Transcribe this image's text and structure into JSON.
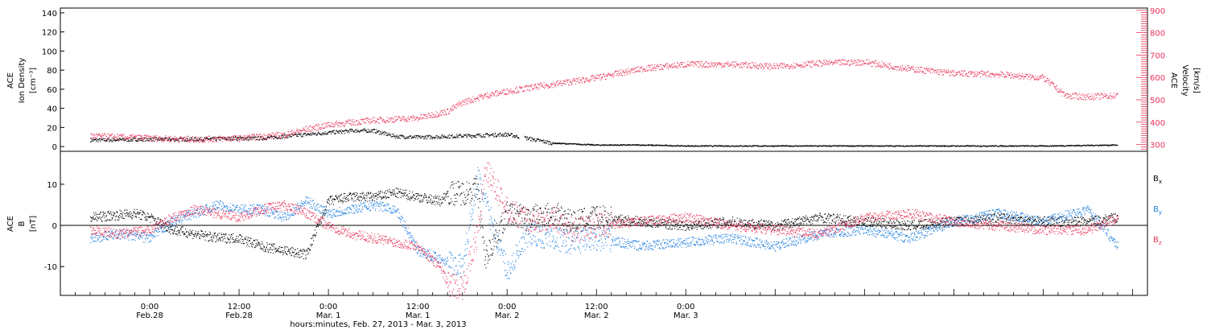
{
  "chart_data": [
    {
      "type": "scatter",
      "panel": "top",
      "ylabel_left": [
        "ACE",
        "Ion Density",
        "[cm⁻³]"
      ],
      "ylabel_right": [
        "ACE",
        "Velocity",
        "[km/s]"
      ],
      "ylim_left": [
        -5,
        145
      ],
      "yticks_left": [
        0,
        20,
        40,
        60,
        80,
        100,
        120,
        140
      ],
      "ylim_right": [
        270,
        910
      ],
      "yticks_right": [
        300,
        400,
        500,
        600,
        700,
        800,
        900
      ],
      "series": [
        {
          "axis": "left",
          "color": "#000000",
          "x_hours": [
            -8,
            0,
            6,
            12,
            15,
            18,
            21,
            24,
            26,
            27,
            30,
            33,
            36,
            40,
            48,
            54,
            60,
            66,
            72,
            78,
            84,
            90,
            96,
            102,
            108,
            114,
            120,
            130
          ],
          "values": [
            7,
            8,
            8,
            9,
            9,
            11,
            13,
            15,
            16,
            17,
            17,
            11,
            10,
            11,
            13,
            4,
            2,
            2,
            1,
            1,
            1,
            1,
            1,
            1,
            1,
            1,
            1,
            2
          ]
        },
        {
          "axis": "right",
          "color": "#e8325a",
          "x_hours": [
            -8,
            0,
            6,
            12,
            18,
            21,
            24,
            30,
            36,
            40,
            42,
            45,
            48,
            54,
            60,
            66,
            72,
            78,
            84,
            90,
            96,
            102,
            108,
            114,
            120,
            123,
            126,
            130
          ],
          "values": [
            340,
            330,
            325,
            330,
            345,
            370,
            390,
            410,
            420,
            450,
            490,
            520,
            540,
            570,
            600,
            640,
            660,
            660,
            650,
            665,
            670,
            640,
            620,
            615,
            600,
            520,
            515,
            520
          ]
        }
      ]
    },
    {
      "type": "scatter",
      "panel": "bottom",
      "ylabel": [
        "ACE",
        "B",
        "[nT]"
      ],
      "ylim": [
        -17,
        18
      ],
      "yticks": [
        -10,
        0,
        10
      ],
      "legend": [
        "Bx",
        "By",
        "Bz"
      ],
      "series": [
        {
          "name": "Bx",
          "color": "#000000",
          "x_hours": [
            -8,
            -2,
            0,
            3,
            6,
            9,
            12,
            15,
            18,
            21,
            24,
            27,
            30,
            33,
            36,
            39,
            40,
            42,
            44,
            45,
            48,
            51,
            54,
            57,
            60,
            66,
            72,
            78,
            84,
            90,
            96,
            102,
            108,
            114,
            120,
            126,
            130
          ],
          "values": [
            2,
            3,
            2,
            -1,
            -2,
            -3,
            -3,
            -5,
            -6,
            -7,
            6,
            7,
            7,
            8,
            7,
            6,
            8,
            8,
            9,
            -8,
            3,
            2,
            3,
            1,
            2,
            1,
            0,
            1,
            0,
            2,
            1,
            0,
            1,
            2,
            1,
            1,
            2
          ]
        },
        {
          "name": "By",
          "color": "#1f7fe0",
          "x_hours": [
            -8,
            -4,
            0,
            3,
            6,
            9,
            12,
            15,
            18,
            21,
            24,
            27,
            30,
            33,
            36,
            39,
            42,
            44,
            45,
            48,
            51,
            54,
            57,
            60,
            66,
            72,
            78,
            84,
            90,
            96,
            102,
            108,
            114,
            120,
            126,
            130
          ],
          "values": [
            -3,
            -2,
            -3,
            1,
            3,
            5,
            4,
            4,
            2,
            6,
            3,
            4,
            5,
            4,
            -6,
            -8,
            -10,
            12,
            6,
            -11,
            -2,
            -3,
            -4,
            -3,
            -5,
            -4,
            -3,
            -5,
            -2,
            -1,
            -3,
            1,
            3,
            1,
            4,
            -5
          ]
        },
        {
          "name": "Bz",
          "color": "#e8325a",
          "x_hours": [
            -8,
            -4,
            0,
            3,
            6,
            9,
            12,
            15,
            18,
            21,
            24,
            27,
            30,
            33,
            36,
            39,
            40,
            42,
            44,
            45,
            48,
            51,
            54,
            57,
            60,
            66,
            72,
            78,
            84,
            90,
            96,
            102,
            108,
            114,
            120,
            126,
            130
          ],
          "values": [
            -1,
            -2,
            -1,
            2,
            4,
            3,
            2,
            4,
            5,
            3,
            0,
            -2,
            -3,
            -4,
            -5,
            -10,
            -14,
            -15,
            -2,
            14,
            4,
            1,
            2,
            -1,
            0,
            1,
            2,
            0,
            -1,
            -2,
            2,
            3,
            1,
            0,
            -1,
            -1,
            2
          ]
        }
      ]
    },
    {
      "type": "scatter",
      "panel": "time-axis",
      "xlabel": "hours:minutes, Feb. 27, 2013 - Mar.  3, 2013",
      "xlim_hours": [
        -12,
        134
      ],
      "x_ticks": [
        {
          "hours": 0,
          "time": "0:00",
          "date": "Feb.28"
        },
        {
          "hours": 12,
          "time": "12:00",
          "date": "Feb.28"
        },
        {
          "hours": 24,
          "time": "0:00",
          "date": "Mar. 1"
        },
        {
          "hours": 36,
          "time": "12:00",
          "date": "Mar. 1"
        },
        {
          "hours": 48,
          "time": "0:00",
          "date": "Mar. 2"
        },
        {
          "hours": 60,
          "time": "12:00",
          "date": "Mar. 2"
        },
        {
          "hours": 72,
          "time": "0:00",
          "date": "Mar. 3"
        }
      ]
    }
  ],
  "colors": {
    "density": "#000000",
    "velocity": "#e8325a",
    "bx": "#000000",
    "by": "#1f7fe0",
    "bz": "#e8325a"
  }
}
